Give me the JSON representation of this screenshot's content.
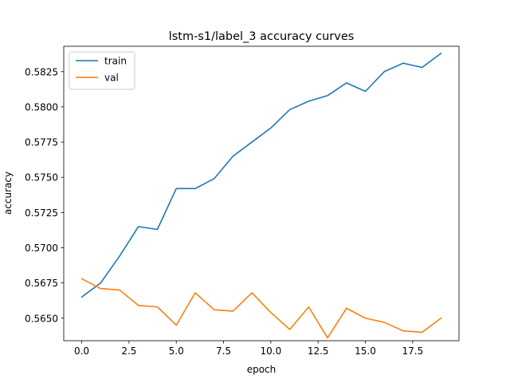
{
  "chart_data": {
    "type": "line",
    "title": "lstm-s1/label_3 accuracy curves",
    "xlabel": "epoch",
    "ylabel": "accuracy",
    "x": [
      0,
      1,
      2,
      3,
      4,
      5,
      6,
      7,
      8,
      9,
      10,
      11,
      12,
      13,
      14,
      15,
      16,
      17,
      18,
      19
    ],
    "xlim": [
      -0.95,
      19.95
    ],
    "ylim": [
      0.5634,
      0.5843
    ],
    "xticks": [
      0.0,
      2.5,
      5.0,
      7.5,
      10.0,
      12.5,
      15.0,
      17.5
    ],
    "xtick_labels": [
      "0.0",
      "2.5",
      "5.0",
      "7.5",
      "10.0",
      "12.5",
      "15.0",
      "17.5"
    ],
    "yticks": [
      0.565,
      0.5675,
      0.57,
      0.5725,
      0.575,
      0.5775,
      0.58,
      0.5825
    ],
    "ytick_labels": [
      "0.5650",
      "0.5675",
      "0.5700",
      "0.5725",
      "0.5750",
      "0.5775",
      "0.5800",
      "0.5825"
    ],
    "grid": false,
    "legend_position": "upper-left",
    "series": [
      {
        "name": "train",
        "color": "#1f77b4",
        "values": [
          0.5665,
          0.5675,
          0.5694,
          0.5715,
          0.5713,
          0.5742,
          0.5742,
          0.5749,
          0.5765,
          0.5775,
          0.5785,
          0.5798,
          0.5804,
          0.5808,
          0.5817,
          0.5811,
          0.5825,
          0.5831,
          0.5828,
          0.5838
        ]
      },
      {
        "name": "val",
        "color": "#ff7f0e",
        "values": [
          0.5678,
          0.5671,
          0.567,
          0.5659,
          0.5658,
          0.5645,
          0.5668,
          0.5656,
          0.5655,
          0.5668,
          0.5654,
          0.5642,
          0.5658,
          0.5636,
          0.5657,
          0.565,
          0.5647,
          0.5641,
          0.564,
          0.565
        ]
      }
    ]
  }
}
